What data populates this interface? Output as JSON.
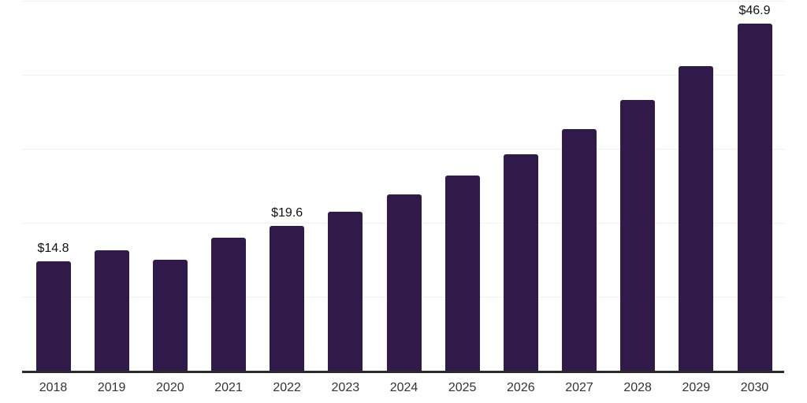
{
  "chart_data": {
    "type": "bar",
    "title": "",
    "xlabel": "",
    "ylabel": "",
    "categories": [
      "2018",
      "2019",
      "2020",
      "2021",
      "2022",
      "2023",
      "2024",
      "2025",
      "2026",
      "2027",
      "2028",
      "2029",
      "2030"
    ],
    "values": [
      14.8,
      16.3,
      15.0,
      18.0,
      19.6,
      21.5,
      23.8,
      26.4,
      29.3,
      32.7,
      36.6,
      41.2,
      46.9
    ],
    "annotations": [
      {
        "category": "2018",
        "label": "$14.8"
      },
      {
        "category": "2022",
        "label": "$19.6"
      },
      {
        "category": "2030",
        "label": "$46.9"
      }
    ],
    "ylim": [
      0,
      50
    ],
    "gridline_step": 10,
    "grid": "horizontal",
    "legend_position": "none",
    "colors": {
      "bar": "#301A4A",
      "axis_line": "#2b2b2b",
      "gridline": "#f0f0f0",
      "tick_label": "#333333",
      "annotation_text": "#111111",
      "background": "#ffffff"
    }
  }
}
